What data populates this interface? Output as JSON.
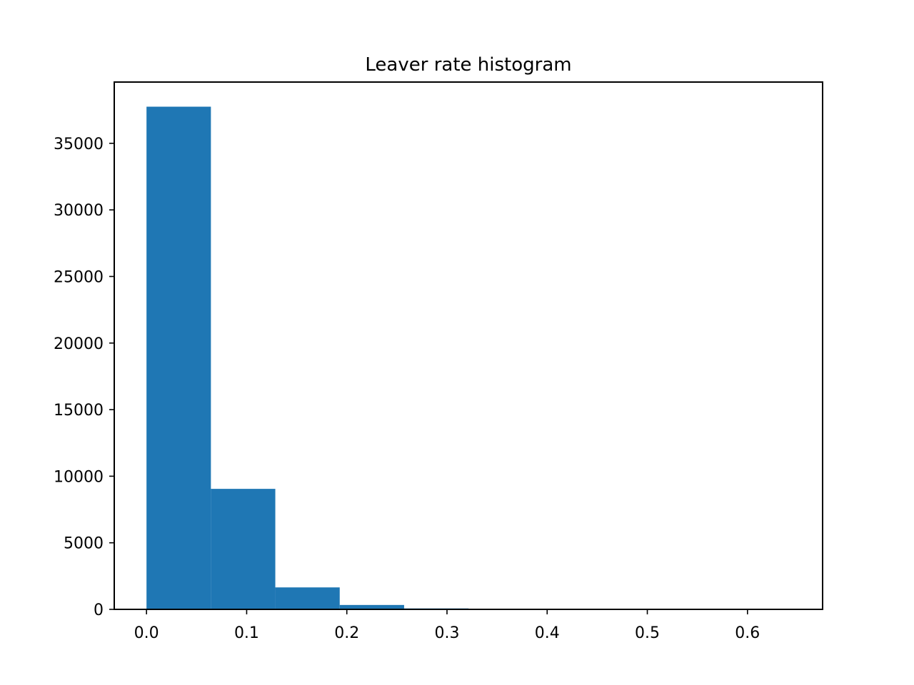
{
  "chart_data": {
    "type": "histogram",
    "title": "Leaver rate histogram",
    "xlabel": "",
    "ylabel": "",
    "bins": [
      {
        "start": 0.0,
        "end": 0.0643,
        "count": 37750
      },
      {
        "start": 0.0643,
        "end": 0.1286,
        "count": 9050
      },
      {
        "start": 0.1286,
        "end": 0.1929,
        "count": 1650
      },
      {
        "start": 0.1929,
        "end": 0.2572,
        "count": 330
      },
      {
        "start": 0.2572,
        "end": 0.3215,
        "count": 70
      },
      {
        "start": 0.3215,
        "end": 0.3858,
        "count": 20
      },
      {
        "start": 0.3858,
        "end": 0.4501,
        "count": 8
      },
      {
        "start": 0.4501,
        "end": 0.5144,
        "count": 4
      },
      {
        "start": 0.5144,
        "end": 0.5787,
        "count": 2
      },
      {
        "start": 0.5787,
        "end": 0.643,
        "count": 1
      }
    ],
    "xlim": [
      -0.0322,
      0.675
    ],
    "ylim": [
      0,
      39600
    ],
    "xticks": [
      0.0,
      0.1,
      0.2,
      0.3,
      0.4,
      0.5,
      0.6
    ],
    "xtick_labels": [
      "0.0",
      "0.1",
      "0.2",
      "0.3",
      "0.4",
      "0.5",
      "0.6"
    ],
    "yticks": [
      0,
      5000,
      10000,
      15000,
      20000,
      25000,
      30000,
      35000
    ],
    "ytick_labels": [
      "0",
      "5000",
      "10000",
      "15000",
      "20000",
      "25000",
      "30000",
      "35000"
    ],
    "bar_color": "#1f77b4",
    "grid": false,
    "legend": "none"
  }
}
